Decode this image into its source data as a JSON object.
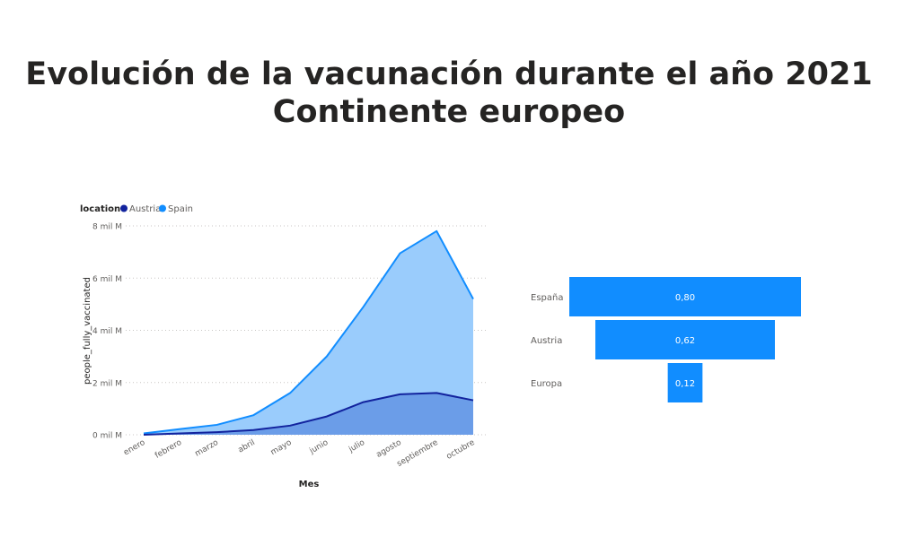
{
  "page": {
    "title_line1": "Evolución de la vacunación durante el año 2021",
    "title_line2": "Continente europeo"
  },
  "colors": {
    "austria": "#12239E",
    "spain": "#118DFF",
    "spain_fill": "#9ACCFC",
    "austria_fill": "#6B9DE8",
    "funnel": "#118DFF",
    "text": "#605E5C",
    "title": "#252423"
  },
  "chart_data": [
    {
      "type": "area",
      "legend_title": "location",
      "legend": [
        "Austria",
        "Spain"
      ],
      "xlabel": "Mes",
      "ylabel": "people_fully_vaccinated",
      "categories": [
        "enero",
        "febrero",
        "marzo",
        "abril",
        "mayo",
        "junio",
        "julio",
        "agosto",
        "septiembre",
        "octubre"
      ],
      "y_ticks": [
        0,
        2,
        4,
        6,
        8
      ],
      "y_tick_labels": [
        "0 mil M",
        "2 mil M",
        "4 mil M",
        "6 mil M",
        "8 mil M"
      ],
      "ylim": [
        0,
        8
      ],
      "y_unit": "mil M",
      "grid": true,
      "series": [
        {
          "name": "Spain",
          "values": [
            0.05,
            0.22,
            0.38,
            0.75,
            1.6,
            3.0,
            4.9,
            6.95,
            7.8,
            5.2
          ]
        },
        {
          "name": "Austria",
          "values": [
            0.0,
            0.05,
            0.1,
            0.18,
            0.35,
            0.7,
            1.25,
            1.55,
            1.6,
            1.32
          ]
        }
      ]
    },
    {
      "type": "funnel",
      "categories": [
        "España",
        "Austria",
        "Europa"
      ],
      "values": [
        0.8,
        0.62,
        0.12
      ],
      "labels": [
        "0,80",
        "0,62",
        "0,12"
      ]
    }
  ]
}
